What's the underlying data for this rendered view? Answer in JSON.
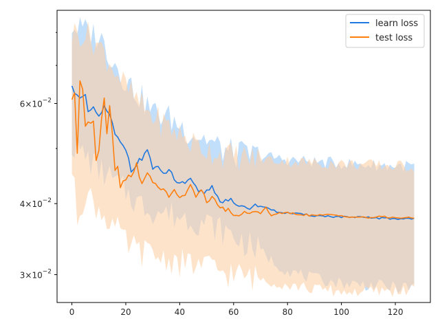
{
  "chart_data": {
    "type": "line",
    "title": "",
    "xlabel": "",
    "ylabel": "",
    "yscale": "log",
    "grid": false,
    "legend_position": "top-right",
    "xlim": [
      -5.5,
      133
    ],
    "ylim": [
      0.0268,
      0.0875
    ],
    "x_ticks": [
      0,
      20,
      40,
      60,
      80,
      100,
      120
    ],
    "x_tick_labels": [
      "0",
      "20",
      "40",
      "60",
      "80",
      "100",
      "120"
    ],
    "y_ticks": [
      0.03,
      0.04,
      0.06
    ],
    "y_tick_labels": [
      {
        "base": "3",
        "exp": "−2"
      },
      {
        "base": "4",
        "exp": "−2"
      },
      {
        "base": "6",
        "exp": "−2"
      }
    ],
    "series": [
      {
        "name": "learn loss",
        "color": "#1f77e0",
        "band_color": "#9fcdf8",
        "keys": [
          [
            0,
            0.064
          ],
          [
            2,
            0.0625
          ],
          [
            3,
            0.061
          ],
          [
            5,
            0.0615
          ],
          [
            6,
            0.058
          ],
          [
            8,
            0.0585
          ],
          [
            10,
            0.057
          ],
          [
            12,
            0.059
          ],
          [
            14,
            0.057
          ],
          [
            16,
            0.053
          ],
          [
            18,
            0.051
          ],
          [
            20,
            0.05
          ],
          [
            22,
            0.046
          ],
          [
            24,
            0.047
          ],
          [
            26,
            0.048
          ],
          [
            28,
            0.05
          ],
          [
            30,
            0.046
          ],
          [
            32,
            0.046
          ],
          [
            34,
            0.045
          ],
          [
            36,
            0.046
          ],
          [
            38,
            0.044
          ],
          [
            40,
            0.0435
          ],
          [
            42,
            0.043
          ],
          [
            44,
            0.044
          ],
          [
            46,
            0.0425
          ],
          [
            48,
            0.042
          ],
          [
            50,
            0.042
          ],
          [
            52,
            0.043
          ],
          [
            54,
            0.041
          ],
          [
            56,
            0.0405
          ],
          [
            58,
            0.0408
          ],
          [
            60,
            0.04
          ],
          [
            62,
            0.0395
          ],
          [
            64,
            0.0395
          ],
          [
            66,
            0.0392
          ],
          [
            68,
            0.0398
          ],
          [
            70,
            0.0395
          ],
          [
            72,
            0.0395
          ],
          [
            74,
            0.039
          ],
          [
            76,
            0.0387
          ],
          [
            80,
            0.0385
          ],
          [
            85,
            0.0383
          ],
          [
            90,
            0.0381
          ],
          [
            95,
            0.038
          ],
          [
            100,
            0.0379
          ],
          [
            105,
            0.0378
          ],
          [
            110,
            0.0378
          ],
          [
            115,
            0.0377
          ],
          [
            120,
            0.0376
          ],
          [
            127,
            0.0377
          ]
        ],
        "upper": [
          [
            0,
            0.082
          ],
          [
            10,
            0.079
          ],
          [
            15,
            0.072
          ],
          [
            20,
            0.066
          ],
          [
            25,
            0.062
          ],
          [
            30,
            0.058
          ],
          [
            35,
            0.057
          ],
          [
            40,
            0.055
          ],
          [
            45,
            0.053
          ],
          [
            50,
            0.052
          ],
          [
            55,
            0.05
          ],
          [
            60,
            0.049
          ],
          [
            65,
            0.0488
          ],
          [
            70,
            0.0485
          ],
          [
            75,
            0.0482
          ],
          [
            80,
            0.0478
          ],
          [
            90,
            0.0474
          ],
          [
            100,
            0.0471
          ],
          [
            110,
            0.0468
          ],
          [
            120,
            0.0466
          ],
          [
            127,
            0.0466
          ]
        ],
        "lower": [
          [
            0,
            0.051
          ],
          [
            10,
            0.046
          ],
          [
            15,
            0.044
          ],
          [
            20,
            0.042
          ],
          [
            25,
            0.04
          ],
          [
            30,
            0.039
          ],
          [
            35,
            0.0385
          ],
          [
            40,
            0.038
          ],
          [
            45,
            0.0375
          ],
          [
            50,
            0.037
          ],
          [
            60,
            0.035
          ],
          [
            70,
            0.033
          ],
          [
            75,
            0.0315
          ],
          [
            80,
            0.0305
          ],
          [
            90,
            0.0295
          ],
          [
            100,
            0.029
          ],
          [
            110,
            0.0288
          ],
          [
            120,
            0.0285
          ],
          [
            127,
            0.0285
          ]
        ]
      },
      {
        "name": "test loss",
        "color": "#ff7f0e",
        "band_color": "#fdd0a8",
        "keys": [
          [
            0,
            0.061
          ],
          [
            1,
            0.063
          ],
          [
            2,
            0.049
          ],
          [
            3,
            0.065
          ],
          [
            4,
            0.064
          ],
          [
            5,
            0.055
          ],
          [
            6,
            0.056
          ],
          [
            8,
            0.056
          ],
          [
            9,
            0.048
          ],
          [
            10,
            0.05
          ],
          [
            12,
            0.062
          ],
          [
            13,
            0.053
          ],
          [
            14,
            0.06
          ],
          [
            16,
            0.046
          ],
          [
            17,
            0.047
          ],
          [
            18,
            0.043
          ],
          [
            20,
            0.044
          ],
          [
            22,
            0.045
          ],
          [
            24,
            0.047
          ],
          [
            26,
            0.043
          ],
          [
            28,
            0.045
          ],
          [
            30,
            0.044
          ],
          [
            32,
            0.043
          ],
          [
            34,
            0.042
          ],
          [
            36,
            0.041
          ],
          [
            38,
            0.0425
          ],
          [
            40,
            0.041
          ],
          [
            42,
            0.041
          ],
          [
            44,
            0.0435
          ],
          [
            46,
            0.041
          ],
          [
            48,
            0.042
          ],
          [
            50,
            0.0405
          ],
          [
            52,
            0.041
          ],
          [
            54,
            0.04
          ],
          [
            56,
            0.039
          ],
          [
            58,
            0.039
          ],
          [
            60,
            0.038
          ],
          [
            62,
            0.0382
          ],
          [
            64,
            0.0386
          ],
          [
            66,
            0.0383
          ],
          [
            68,
            0.0388
          ],
          [
            70,
            0.0385
          ],
          [
            72,
            0.0393
          ],
          [
            74,
            0.0382
          ],
          [
            76,
            0.0384
          ],
          [
            80,
            0.0385
          ],
          [
            85,
            0.0383
          ],
          [
            90,
            0.0381
          ],
          [
            95,
            0.0382
          ],
          [
            100,
            0.0381
          ],
          [
            105,
            0.0379
          ],
          [
            110,
            0.0378
          ],
          [
            115,
            0.0379
          ],
          [
            120,
            0.0378
          ],
          [
            127,
            0.0377
          ]
        ],
        "upper": [
          [
            0,
            0.08
          ],
          [
            5,
            0.08
          ],
          [
            10,
            0.076
          ],
          [
            15,
            0.07
          ],
          [
            20,
            0.064
          ],
          [
            25,
            0.06
          ],
          [
            30,
            0.057
          ],
          [
            35,
            0.055
          ],
          [
            40,
            0.053
          ],
          [
            45,
            0.051
          ],
          [
            50,
            0.05
          ],
          [
            55,
            0.049
          ],
          [
            60,
            0.0485
          ],
          [
            70,
            0.048
          ],
          [
            80,
            0.0475
          ],
          [
            90,
            0.0472
          ],
          [
            100,
            0.047
          ],
          [
            110,
            0.0468
          ],
          [
            120,
            0.0466
          ],
          [
            127,
            0.0465
          ]
        ],
        "lower": [
          [
            0,
            0.046
          ],
          [
            2,
            0.038
          ],
          [
            5,
            0.042
          ],
          [
            10,
            0.039
          ],
          [
            15,
            0.037
          ],
          [
            20,
            0.034
          ],
          [
            25,
            0.033
          ],
          [
            30,
            0.0325
          ],
          [
            35,
            0.032
          ],
          [
            40,
            0.0315
          ],
          [
            50,
            0.031
          ],
          [
            60,
            0.03
          ],
          [
            70,
            0.0295
          ],
          [
            80,
            0.0288
          ],
          [
            90,
            0.0283
          ],
          [
            100,
            0.028
          ],
          [
            110,
            0.028
          ],
          [
            120,
            0.0281
          ],
          [
            127,
            0.0282
          ]
        ]
      }
    ]
  }
}
